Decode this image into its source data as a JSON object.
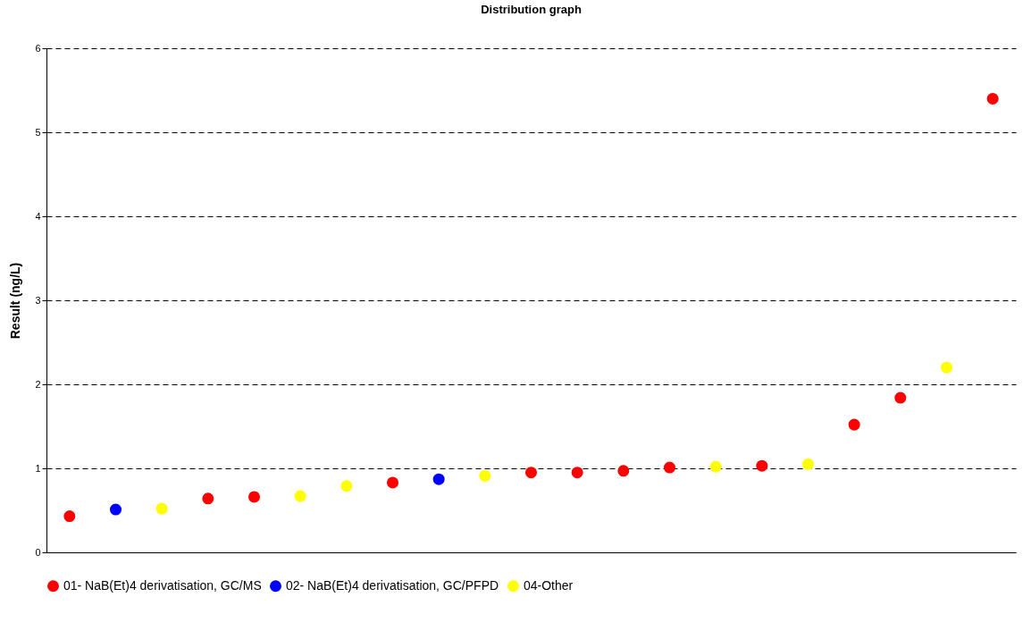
{
  "chart_data": {
    "type": "scatter",
    "title": "Distribution graph",
    "ylabel": "Result (ng/L)",
    "categories": [
      null,
      null,
      null,
      null,
      null,
      null,
      null,
      null,
      null,
      null,
      null,
      null,
      null,
      null,
      null,
      null,
      null,
      null,
      null,
      null,
      null
    ],
    "series": [
      {
        "name": "01- NaB(Et)4 derivatisation, GC/MS",
        "color": "#ff0000",
        "values": [
          0.43,
          null,
          null,
          0.64,
          0.66,
          null,
          null,
          0.83,
          null,
          null,
          0.95,
          0.95,
          0.97,
          1.01,
          null,
          1.03,
          null,
          1.52,
          1.84,
          null,
          5.4
        ]
      },
      {
        "name": "02- NaB(Et)4 derivatisation, GC/PFPD",
        "color": "#0000ff",
        "values": [
          null,
          0.51,
          null,
          null,
          null,
          null,
          null,
          null,
          0.87,
          null,
          null,
          null,
          null,
          null,
          null,
          null,
          null,
          null,
          null,
          null,
          null
        ]
      },
      {
        "name": "04-Other",
        "color": "#ffff00",
        "values": [
          null,
          null,
          0.52,
          null,
          null,
          0.67,
          0.79,
          null,
          null,
          0.91,
          null,
          null,
          null,
          null,
          1.02,
          null,
          1.05,
          null,
          null,
          2.2,
          null
        ]
      }
    ],
    "ylim": [
      0,
      6
    ],
    "yticks": [
      0,
      1,
      2,
      3,
      4,
      5,
      6
    ],
    "grid": "y",
    "legend": "bottom",
    "marker": "circle"
  }
}
